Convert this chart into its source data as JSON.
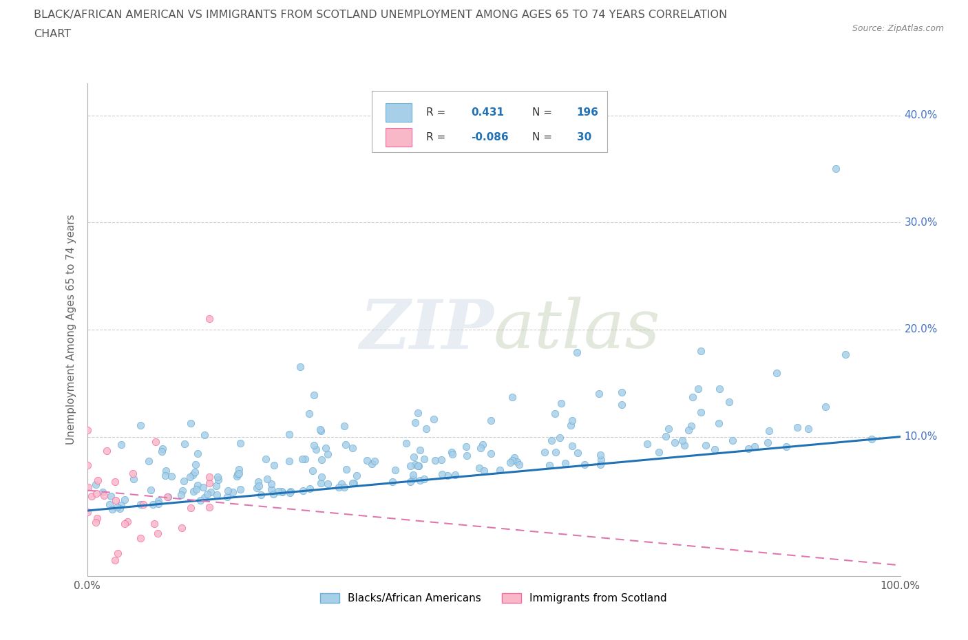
{
  "title_line1": "BLACK/AFRICAN AMERICAN VS IMMIGRANTS FROM SCOTLAND UNEMPLOYMENT AMONG AGES 65 TO 74 YEARS CORRELATION",
  "title_line2": "CHART",
  "source": "Source: ZipAtlas.com",
  "ylabel": "Unemployment Among Ages 65 to 74 years",
  "xlim": [
    0,
    1.0
  ],
  "ylim": [
    -0.03,
    0.43
  ],
  "blue_color": "#a8cfe8",
  "blue_edge": "#6aaed6",
  "pink_color": "#f9b8c8",
  "pink_edge": "#f768a1",
  "trend_blue": "#2171b5",
  "trend_pink": "#de77ae",
  "R_blue": 0.431,
  "N_blue": 196,
  "R_pink": -0.086,
  "N_pink": 30,
  "legend_label_blue": "Blacks/African Americans",
  "legend_label_pink": "Immigrants from Scotland",
  "background_color": "#ffffff",
  "grid_color": "#cccccc",
  "title_color": "#555555",
  "ytick_positions": [
    0.0,
    0.1,
    0.2,
    0.3,
    0.4
  ],
  "ytick_labels_right": [
    "",
    "10.0%",
    "20.0%",
    "30.0%",
    "40.0%"
  ],
  "xtick_positions": [
    0.0,
    1.0
  ],
  "xtick_labels": [
    "0.0%",
    "100.0%"
  ]
}
